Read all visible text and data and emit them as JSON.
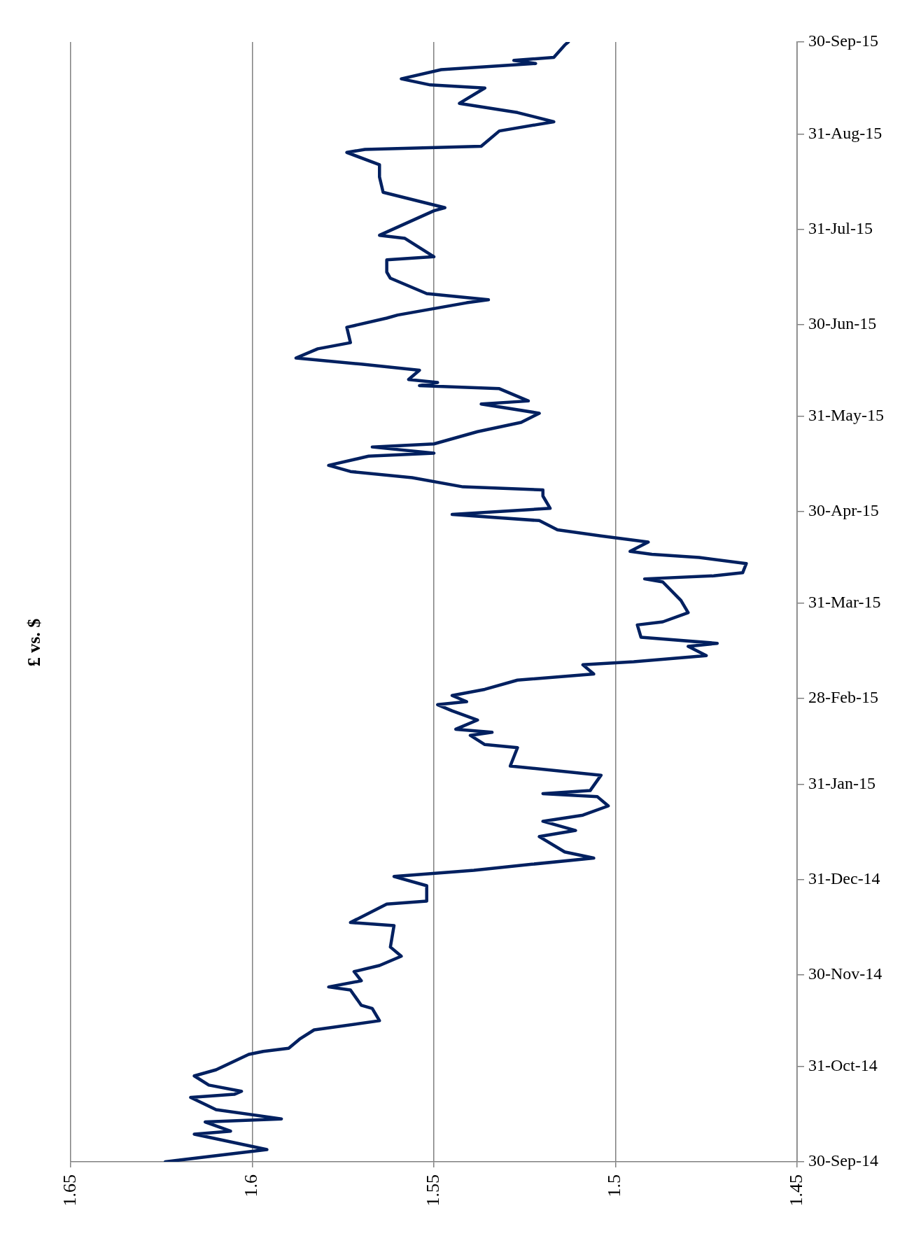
{
  "chart_data": {
    "type": "line",
    "title": "£ vs. $",
    "x": [
      "2014-09-30",
      "2014-10-04",
      "2014-10-09",
      "2014-10-10",
      "2014-10-13",
      "2014-10-14",
      "2014-10-17",
      "2014-10-21",
      "2014-10-22",
      "2014-10-23",
      "2014-10-25",
      "2014-10-28",
      "2014-10-30",
      "2014-11-04",
      "2014-11-05",
      "2014-11-06",
      "2014-11-09",
      "2014-11-12",
      "2014-11-15",
      "2014-11-19",
      "2014-11-20",
      "2014-11-25",
      "2014-11-26",
      "2014-11-28",
      "2014-12-01",
      "2014-12-03",
      "2014-12-06",
      "2014-12-09",
      "2014-12-16",
      "2014-12-17",
      "2014-12-23",
      "2014-12-24",
      "2014-12-29",
      "2015-01-01",
      "2015-01-03",
      "2015-01-05",
      "2015-01-07",
      "2015-01-09",
      "2015-01-14",
      "2015-01-16",
      "2015-01-19",
      "2015-01-21",
      "2015-01-24",
      "2015-01-27",
      "2015-01-28",
      "2015-01-29",
      "2015-02-03",
      "2015-02-06",
      "2015-02-12",
      "2015-02-13",
      "2015-02-16",
      "2015-02-17",
      "2015-02-18",
      "2015-02-21",
      "2015-02-24",
      "2015-02-26",
      "2015-02-27",
      "2015-03-01",
      "2015-03-03",
      "2015-03-06",
      "2015-03-08",
      "2015-03-11",
      "2015-03-12",
      "2015-03-14",
      "2015-03-17",
      "2015-03-18",
      "2015-03-20",
      "2015-03-24",
      "2015-03-25",
      "2015-03-28",
      "2015-04-01",
      "2015-04-07",
      "2015-04-08",
      "2015-04-09",
      "2015-04-10",
      "2015-04-13",
      "2015-04-15",
      "2015-04-16",
      "2015-04-17",
      "2015-04-20",
      "2015-04-22",
      "2015-04-24",
      "2015-04-27",
      "2015-04-29",
      "2015-05-01",
      "2015-05-05",
      "2015-05-07",
      "2015-05-08",
      "2015-05-11",
      "2015-05-13",
      "2015-05-15",
      "2015-05-18",
      "2015-05-19",
      "2015-05-21",
      "2015-05-22",
      "2015-05-26",
      "2015-05-29",
      "2015-06-01",
      "2015-06-04",
      "2015-06-05",
      "2015-06-09",
      "2015-06-10",
      "2015-06-11",
      "2015-06-12",
      "2015-06-15",
      "2015-06-17",
      "2015-06-19",
      "2015-06-22",
      "2015-06-24",
      "2015-06-29",
      "2015-07-02",
      "2015-07-03",
      "2015-07-07",
      "2015-07-08",
      "2015-07-10",
      "2015-07-15",
      "2015-07-17",
      "2015-07-21",
      "2015-07-22",
      "2015-07-28",
      "2015-07-29",
      "2015-08-06",
      "2015-08-07",
      "2015-08-12",
      "2015-08-17",
      "2015-08-21",
      "2015-08-25",
      "2015-08-26",
      "2015-08-27",
      "2015-09-01",
      "2015-09-03",
      "2015-09-04",
      "2015-09-07",
      "2015-09-10",
      "2015-09-15",
      "2015-09-16",
      "2015-09-18",
      "2015-09-21",
      "2015-09-23",
      "2015-09-24",
      "2015-09-25",
      "2015-09-29",
      "2015-09-30"
    ],
    "values": [
      1.624,
      1.596,
      1.616,
      1.606,
      1.613,
      1.592,
      1.61,
      1.617,
      1.605,
      1.603,
      1.612,
      1.616,
      1.61,
      1.601,
      1.597,
      1.59,
      1.587,
      1.583,
      1.565,
      1.567,
      1.57,
      1.573,
      1.579,
      1.57,
      1.572,
      1.565,
      1.559,
      1.562,
      1.561,
      1.573,
      1.563,
      1.552,
      1.552,
      1.561,
      1.539,
      1.523,
      1.506,
      1.514,
      1.521,
      1.511,
      1.52,
      1.509,
      1.502,
      1.505,
      1.52,
      1.507,
      1.504,
      1.529,
      1.527,
      1.536,
      1.54,
      1.534,
      1.544,
      1.538,
      1.545,
      1.549,
      1.541,
      1.545,
      1.536,
      1.527,
      1.506,
      1.509,
      1.495,
      1.475,
      1.48,
      1.472,
      1.493,
      1.494,
      1.487,
      1.48,
      1.482,
      1.487,
      1.492,
      1.473,
      1.465,
      1.464,
      1.477,
      1.49,
      1.496,
      1.491,
      1.504,
      1.516,
      1.521,
      1.545,
      1.518,
      1.52,
      1.52,
      1.542,
      1.556,
      1.573,
      1.579,
      1.568,
      1.55,
      1.567,
      1.55,
      1.538,
      1.526,
      1.521,
      1.537,
      1.524,
      1.532,
      1.554,
      1.549,
      1.557,
      1.554,
      1.57,
      1.588,
      1.582,
      1.573,
      1.574,
      1.563,
      1.56,
      1.541,
      1.535,
      1.552,
      1.562,
      1.563,
      1.563,
      1.55,
      1.558,
      1.565,
      1.55,
      1.547,
      1.564,
      1.565,
      1.565,
      1.574,
      1.569,
      1.537,
      1.532,
      1.522,
      1.517,
      1.527,
      1.543,
      1.536,
      1.551,
      1.559,
      1.548,
      1.522,
      1.528,
      1.517,
      1.514,
      1.513
    ],
    "color": "#002060",
    "orientation": "horizontal",
    "ylim": [
      "2014-09-30",
      "2015-09-30"
    ],
    "yticks": [
      {
        "value": "2014-09-30",
        "label": "30-Sep-14"
      },
      {
        "value": "2014-10-31",
        "label": "31-Oct-14"
      },
      {
        "value": "2014-11-30",
        "label": "30-Nov-14"
      },
      {
        "value": "2014-12-31",
        "label": "31-Dec-14"
      },
      {
        "value": "2015-01-31",
        "label": "31-Jan-15"
      },
      {
        "value": "2015-02-28",
        "label": "28-Feb-15"
      },
      {
        "value": "2015-03-31",
        "label": "31-Mar-15"
      },
      {
        "value": "2015-04-30",
        "label": "30-Apr-15"
      },
      {
        "value": "2015-05-31",
        "label": "31-May-15"
      },
      {
        "value": "2015-06-30",
        "label": "30-Jun-15"
      },
      {
        "value": "2015-07-31",
        "label": "31-Jul-15"
      },
      {
        "value": "2015-08-31",
        "label": "31-Aug-15"
      },
      {
        "value": "2015-09-30",
        "label": "30-Sep-15"
      }
    ],
    "xlim": [
      1.65,
      1.45
    ],
    "xticks": [
      1.65,
      1.6,
      1.55,
      1.5,
      1.45
    ],
    "grid": "x",
    "marker": "none",
    "line_style": "solid"
  }
}
